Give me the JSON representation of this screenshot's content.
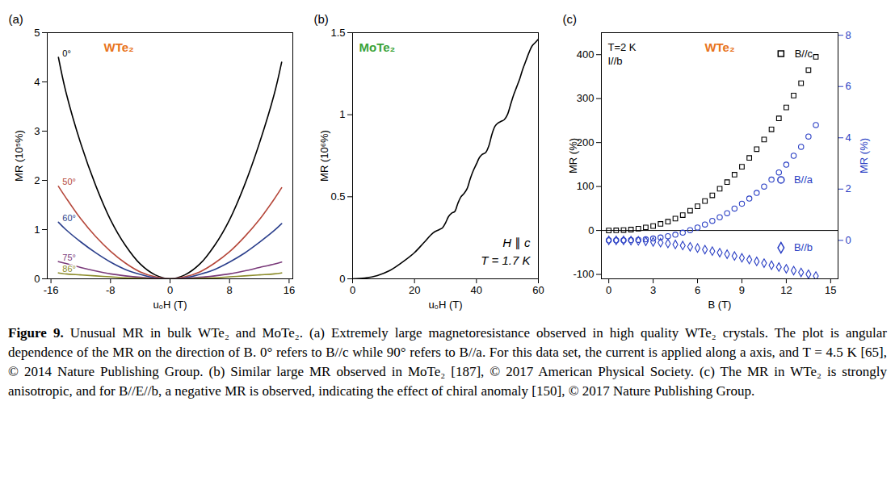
{
  "chart_data": [
    {
      "type": "line",
      "panel": "(a)",
      "title": "WTe₂",
      "x_label": "u₀H (T)",
      "y_label": "MR (10⁵%)",
      "xlim": [
        -16.5,
        16.5
      ],
      "xticks": [
        -16,
        -8,
        0,
        8,
        16
      ],
      "ylim": [
        0,
        5
      ],
      "yticks": [
        0,
        1,
        2,
        3,
        4,
        5
      ],
      "x": [
        -15,
        -14,
        -12,
        -10,
        -8,
        -6,
        -4,
        -2,
        0,
        2,
        4,
        6,
        8,
        10,
        12,
        14,
        15
      ],
      "series": [
        {
          "name": "0°",
          "color": "#000000",
          "values": [
            4.5,
            3.8,
            2.75,
            1.9,
            1.2,
            0.68,
            0.3,
            0.08,
            0,
            0.08,
            0.3,
            0.68,
            1.2,
            1.9,
            2.75,
            3.75,
            4.4
          ]
        },
        {
          "name": "50°",
          "color": "#b5473a",
          "values": [
            1.88,
            1.65,
            1.22,
            0.86,
            0.56,
            0.32,
            0.14,
            0.04,
            0,
            0.04,
            0.14,
            0.32,
            0.55,
            0.85,
            1.2,
            1.62,
            1.85
          ]
        },
        {
          "name": "60°",
          "color": "#2b3f8c",
          "values": [
            1.15,
            1.0,
            0.75,
            0.53,
            0.34,
            0.19,
            0.09,
            0.02,
            0,
            0.02,
            0.09,
            0.19,
            0.34,
            0.52,
            0.74,
            0.98,
            1.12
          ]
        },
        {
          "name": "75°",
          "color": "#7a3a7a",
          "values": [
            0.35,
            0.31,
            0.23,
            0.16,
            0.1,
            0.06,
            0.03,
            0.01,
            0,
            0.01,
            0.03,
            0.06,
            0.1,
            0.16,
            0.23,
            0.3,
            0.34
          ]
        },
        {
          "name": "86°",
          "color": "#8c8c2a",
          "values": [
            0.12,
            0.1,
            0.08,
            0.06,
            0.04,
            0.02,
            0.01,
            0,
            0,
            0,
            0.01,
            0.02,
            0.04,
            0.06,
            0.08,
            0.1,
            0.12
          ]
        }
      ]
    },
    {
      "type": "line",
      "panel": "(b)",
      "title": "MoTe₂",
      "x_label": "u₀H (T)",
      "y_label": "MR (10⁶%)",
      "annotations": [
        "H ∥ c",
        "T = 1.7 K"
      ],
      "xlim": [
        0,
        60
      ],
      "xticks": [
        0,
        20,
        40,
        60
      ],
      "ylim": [
        0,
        1.5
      ],
      "yticks": [
        0,
        0.5,
        1,
        1.5
      ],
      "x": [
        0,
        4,
        8,
        12,
        16,
        20,
        23,
        26,
        28,
        29,
        30,
        31,
        32,
        33,
        34,
        35,
        36,
        37,
        38,
        39,
        40,
        41,
        42,
        43,
        44,
        45,
        46,
        47,
        48,
        49,
        50,
        51,
        52,
        53,
        54,
        55,
        56,
        57,
        58,
        59,
        60
      ],
      "series": [
        {
          "name": "MoTe₂",
          "color": "#000000",
          "values": [
            0,
            0.005,
            0.02,
            0.05,
            0.1,
            0.16,
            0.22,
            0.28,
            0.3,
            0.31,
            0.34,
            0.38,
            0.4,
            0.41,
            0.46,
            0.5,
            0.52,
            0.55,
            0.61,
            0.66,
            0.7,
            0.74,
            0.76,
            0.77,
            0.81,
            0.88,
            0.93,
            0.95,
            0.96,
            0.97,
            1.0,
            1.06,
            1.12,
            1.17,
            1.22,
            1.28,
            1.33,
            1.38,
            1.42,
            1.44,
            1.46
          ]
        }
      ]
    },
    {
      "type": "scatter",
      "panel": "(c)",
      "title": "WTe₂",
      "x_label": "B (T)",
      "y_label": "MR (%)",
      "y2_label": "MR (%)",
      "annotations": [
        "T=2 K",
        "I//b"
      ],
      "xlim": [
        -0.5,
        15.5
      ],
      "xticks": [
        0,
        3,
        6,
        9,
        12,
        15
      ],
      "ylim": [
        -110,
        450
      ],
      "yticks": [
        -100,
        0,
        100,
        200,
        300,
        400
      ],
      "y2lim": [
        -1.5,
        8.1
      ],
      "y2ticks": [
        0,
        2,
        4,
        6,
        8
      ],
      "x": [
        0,
        0.5,
        1,
        1.5,
        2,
        2.5,
        3,
        3.5,
        4,
        4.5,
        5,
        5.5,
        6,
        6.5,
        7,
        7.5,
        8,
        8.5,
        9,
        9.5,
        10,
        10.5,
        11,
        11.5,
        12,
        12.5,
        13,
        13.5,
        14
      ],
      "series": [
        {
          "name": "B//c",
          "color": "#000000",
          "marker": "square",
          "values": [
            0,
            0.3,
            1,
            2,
            4,
            7,
            10,
            15,
            20,
            27,
            35,
            45,
            55,
            67,
            80,
            95,
            110,
            127,
            145,
            165,
            185,
            207,
            230,
            255,
            280,
            307,
            335,
            365,
            395
          ]
        },
        {
          "name": "B//a",
          "color": "#2a3fc4",
          "marker": "circle",
          "axis": "y2",
          "values": [
            0,
            0,
            0,
            0.01,
            0.02,
            0.04,
            0.07,
            0.11,
            0.16,
            0.22,
            0.3,
            0.4,
            0.5,
            0.62,
            0.76,
            0.9,
            1.06,
            1.24,
            1.43,
            1.63,
            1.85,
            2.1,
            2.37,
            2.65,
            2.95,
            3.3,
            3.65,
            4.05,
            4.5
          ]
        },
        {
          "name": "B//b",
          "color": "#2a3fc4",
          "marker": "diamond",
          "axis": "y2",
          "values": [
            0,
            0,
            0,
            -0.01,
            -0.02,
            -0.04,
            -0.06,
            -0.09,
            -0.12,
            -0.16,
            -0.2,
            -0.25,
            -0.3,
            -0.36,
            -0.42,
            -0.48,
            -0.54,
            -0.61,
            -0.68,
            -0.75,
            -0.82,
            -0.89,
            -0.97,
            -1.04,
            -1.11,
            -1.18,
            -1.25,
            -1.32,
            -1.39
          ]
        }
      ]
    }
  ],
  "caption": {
    "label": "Figure 9.",
    "text": "Unusual MR in bulk WTe₂ and MoTe₂. (a) Extremely large magnetoresistance observed in high quality WTe₂ crystals. The plot is angular dependence of the MR on the direction of B. 0° refers to B//c while 90° refers to B//a. For this data set, the current is applied along a axis, and T = 4.5 K [65], © 2014 Nature Publishing Group. (b) Similar large MR observed in MoTe₂ [187], © 2017 American Physical Society. (c) The MR in WTe₂ is strongly anisotropic, and for B//E//b, a negative MR is observed, indicating the effect of chiral anomaly [150], © 2017 Nature Publishing Group."
  }
}
